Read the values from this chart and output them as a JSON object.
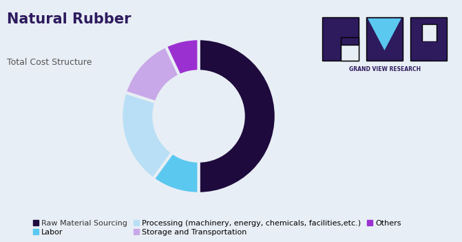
{
  "title": "Natural Rubber",
  "subtitle": "Total Cost Structure",
  "segments": [
    {
      "label": "Raw Material Sourcing",
      "value": 50,
      "color": "#1e0a3c"
    },
    {
      "label": "Labor",
      "value": 10,
      "color": "#5bc8f0"
    },
    {
      "label": "Processing (machinery, energy, chemicals, facilities,etc.)",
      "value": 20,
      "color": "#b8dff5"
    },
    {
      "label": "Storage and Transportation",
      "value": 13,
      "color": "#c8a8e8"
    },
    {
      "label": "Others",
      "value": 7,
      "color": "#9b30d0"
    }
  ],
  "background_color": "#e8eef5",
  "title_color": "#2d1b5e",
  "subtitle_color": "#555555",
  "title_fontsize": 15,
  "subtitle_fontsize": 9,
  "legend_fontsize": 8,
  "border_color": "#a8c8e8",
  "logo_bg_color": "#2d1b5e",
  "logo_text_color": "#ffffff",
  "logo_triangle_color": "#5bc8f0",
  "gvr_label_color": "#2d1b5e"
}
